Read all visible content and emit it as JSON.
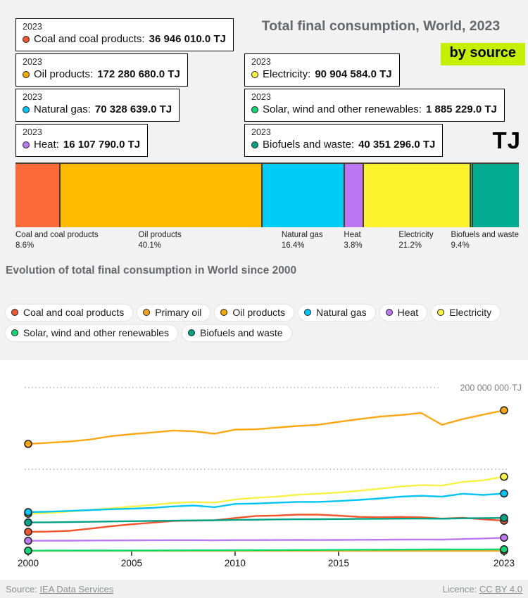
{
  "header": {
    "title": "Total final consumption, World, 2023",
    "badge": "by source",
    "unit_label": "TJ",
    "badge_color": "#c6f000"
  },
  "tooltips": [
    {
      "year": "2023",
      "label": "Coal and coal products:",
      "value": "36 946 010.0 TJ",
      "color": "#f1562c"
    },
    {
      "year": "2023",
      "label": "Oil products:",
      "value": "172 280 680.0 TJ",
      "color": "#f5a800"
    },
    {
      "year": "2023",
      "label": "Natural gas:",
      "value": "70 328 639.0 TJ",
      "color": "#00c5f2"
    },
    {
      "year": "2023",
      "label": "Heat:",
      "value": "16 107 790.0 TJ",
      "color": "#bc77f2"
    },
    {
      "year": "2023",
      "label": "Electricity:",
      "value": "90 904 584.0 TJ",
      "color": "#f7f243"
    },
    {
      "year": "2023",
      "label": "Solar, wind and other renewables:",
      "value": "1 885 229.0 TJ",
      "color": "#0fd975"
    },
    {
      "year": "2023",
      "label": "Biofuels and waste:",
      "value": "40 351 296.0 TJ",
      "color": "#00a287"
    }
  ],
  "subtitle": "Evolution of total final consumption in World since 2000",
  "legend": {
    "items": [
      {
        "label": "Coal and coal products",
        "color": "#f1562c"
      },
      {
        "label": "Primary oil",
        "color": "#eca51c"
      },
      {
        "label": "Oil products",
        "color": "#f5a800"
      },
      {
        "label": "Natural gas",
        "color": "#00c5f2"
      },
      {
        "label": "Heat",
        "color": "#bc77f2"
      },
      {
        "label": "Electricity",
        "color": "#f7f243"
      },
      {
        "label": "Solar, wind and other renewables",
        "color": "#0fd975"
      },
      {
        "label": "Biofuels and waste",
        "color": "#00a287"
      }
    ]
  },
  "footer": {
    "source_prefix": "Source:",
    "source_link": "IEA Data Services",
    "licence_prefix": "Licence:",
    "licence_link": "CC BY 4.0"
  },
  "chart_data": [
    {
      "type": "bar",
      "title": "Total final consumption, World, 2023 — by source",
      "unit": "TJ",
      "segments": [
        {
          "label": "Coal and coal products",
          "pct": 8.6,
          "pct_label": "8.6%",
          "value_tj": 36946010,
          "color": "#fc693a",
          "show_label": true
        },
        {
          "label": "Oil products",
          "pct": 40.1,
          "pct_label": "40.1%",
          "value_tj": 172280680,
          "color": "#ffbb00",
          "show_label": true
        },
        {
          "label": "Natural gas",
          "pct": 16.4,
          "pct_label": "16.4%",
          "value_tj": 70328639,
          "color": "#00cdf7",
          "show_label": true
        },
        {
          "label": "Heat",
          "pct": 3.8,
          "pct_label": "3.8%",
          "value_tj": 16107790,
          "color": "#bd76f2",
          "show_label": true
        },
        {
          "label": "Electricity",
          "pct": 21.2,
          "pct_label": "21.2%",
          "value_tj": 90904584,
          "color": "#fdf32c",
          "show_label": true
        },
        {
          "label": "Solar, wind and other renewables",
          "pct": 0.4,
          "pct_label": "0.4%",
          "value_tj": 1885229,
          "color": "#00d566",
          "show_label": false
        },
        {
          "label": "Biofuels and waste",
          "pct": 9.4,
          "pct_label": "9.4%",
          "value_tj": 40351296,
          "color": "#00ab90",
          "show_label": true
        }
      ]
    },
    {
      "type": "line",
      "title": "Evolution of total final consumption in World since 2000",
      "values_unit": "million TJ",
      "ylim": [
        0,
        230
      ],
      "x": [
        2000,
        2001,
        2002,
        2003,
        2004,
        2005,
        2006,
        2007,
        2008,
        2009,
        2010,
        2011,
        2012,
        2013,
        2014,
        2015,
        2016,
        2017,
        2018,
        2019,
        2020,
        2021,
        2022,
        2023
      ],
      "x_ticks": [
        2000,
        2005,
        2010,
        2015,
        2023
      ],
      "gridlines": [
        {
          "value": 200,
          "label": "200 000 000·TJ"
        },
        {
          "value": 100,
          "label": ""
        }
      ],
      "series": [
        {
          "name": "Coal and coal products",
          "color": "#f1562c",
          "values": [
            23.3,
            23.6,
            24.6,
            27.2,
            30.2,
            32.6,
            34.6,
            36.6,
            37.1,
            37.4,
            40.3,
            42.8,
            43.3,
            44.4,
            44.4,
            43.1,
            41.6,
            41.2,
            41.6,
            41.1,
            39.6,
            40.6,
            38.6,
            36.95
          ]
        },
        {
          "name": "Primary oil",
          "color": "#eca51c",
          "values": [
            0.08,
            0.08,
            0.08,
            0.08,
            0.08,
            0.08,
            0.08,
            0.08,
            0.08,
            0.08,
            0.08,
            0.08,
            0.08,
            0.08,
            0.08,
            0.08,
            0.08,
            0.08,
            0.08,
            0.08,
            0.08,
            0.08,
            0.08,
            0.08
          ]
        },
        {
          "name": "Oil products",
          "color": "#fca712",
          "values": [
            131,
            132.5,
            134,
            136.5,
            140.5,
            143,
            145,
            147.5,
            146.5,
            143.5,
            148.5,
            149,
            151,
            153,
            154.5,
            158,
            161.5,
            164.5,
            166.5,
            169,
            154.5,
            161.5,
            167,
            172.28
          ]
        },
        {
          "name": "Electricity",
          "color": "#f7f243",
          "values": [
            45.5,
            46.5,
            48.2,
            50,
            52.2,
            54.2,
            56.3,
            58.7,
            59.7,
            59.2,
            63,
            65,
            66.5,
            68.7,
            70,
            71.5,
            73.7,
            76.2,
            79,
            80.5,
            80,
            84.5,
            86.5,
            90.9
          ]
        },
        {
          "name": "Natural gas",
          "color": "#00c5f2",
          "values": [
            47.5,
            48,
            49,
            50,
            51,
            51.7,
            52.7,
            54.5,
            55.5,
            53.5,
            57.5,
            58,
            59,
            60,
            60,
            61,
            62.5,
            64.2,
            66.5,
            67.5,
            66.5,
            70,
            68.5,
            70.33
          ]
        },
        {
          "name": "Heat",
          "color": "#bc77f2",
          "values": [
            12.3,
            12.4,
            12.5,
            12.7,
            12.8,
            12.9,
            13,
            13.1,
            13.1,
            12.9,
            13.2,
            13.2,
            13.3,
            13.4,
            13.3,
            13.4,
            13.5,
            13.6,
            13.8,
            13.9,
            13.8,
            14.5,
            15.2,
            16.11
          ]
        },
        {
          "name": "Solar, wind and other renewables",
          "color": "#0fd975",
          "values": [
            0.3,
            0.33,
            0.36,
            0.4,
            0.44,
            0.48,
            0.53,
            0.58,
            0.65,
            0.72,
            0.8,
            0.88,
            0.97,
            1.06,
            1.15,
            1.25,
            1.35,
            1.45,
            1.55,
            1.65,
            1.7,
            1.78,
            1.83,
            1.89
          ]
        },
        {
          "name": "Biofuels and waste",
          "color": "#00a287",
          "values": [
            34.8,
            35,
            35.3,
            35.6,
            36,
            36.4,
            36.7,
            37,
            37.3,
            37.5,
            38,
            38.2,
            38.5,
            38.7,
            38.8,
            39,
            39.1,
            39.3,
            39.5,
            39.6,
            39.4,
            39.9,
            40.1,
            40.35
          ]
        }
      ]
    }
  ]
}
